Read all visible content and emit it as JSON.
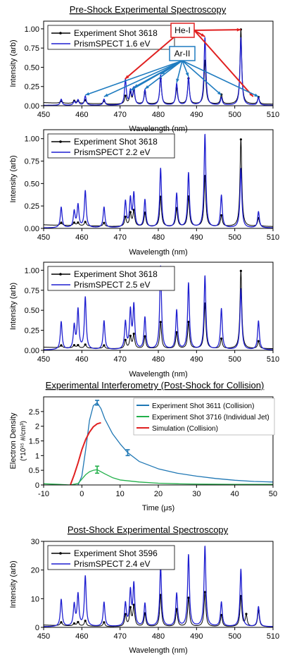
{
  "chart_data": [
    {
      "type": "line",
      "title": "Pre-Shock Experimental Spectroscopy",
      "xlabel": "Wavelength (nm)",
      "ylabel": "Intensity (arb)",
      "xlim": [
        450,
        510
      ],
      "ylim": [
        0,
        1.1
      ],
      "x_ticks": [
        "450",
        "460",
        "470",
        "480",
        "490",
        "500",
        "510"
      ],
      "y_ticks": [
        "0.00",
        "0.25",
        "0.50",
        "0.75",
        "1.00"
      ],
      "legend": [
        "Experiment Shot 3618",
        "PrismSPECT 1.6 eV"
      ],
      "legend_position": "top-left",
      "series": [
        {
          "name": "Experiment Shot 3618",
          "color": "#000000",
          "peaks": [
            [
              454.6,
              0.04
            ],
            [
              458.0,
              0.04
            ],
            [
              459.0,
              0.04
            ],
            [
              460.9,
              0.05
            ],
            [
              465.8,
              0.04
            ],
            [
              471.4,
              0.1
            ],
            [
              472.7,
              0.14
            ],
            [
              473.6,
              0.17
            ],
            [
              476.5,
              0.15
            ],
            [
              480.6,
              0.33
            ],
            [
              484.8,
              0.2
            ],
            [
              487.9,
              0.33
            ],
            [
              492.2,
              0.56
            ],
            [
              496.5,
              0.12
            ],
            [
              501.6,
              0.97
            ],
            [
              506.2,
              0.09
            ]
          ]
        },
        {
          "name": "PrismSPECT 1.6 eV",
          "color": "#1f1fd0",
          "peaks": [
            [
              454.6,
              0.08
            ],
            [
              458.0,
              0.05
            ],
            [
              459.0,
              0.07
            ],
            [
              460.9,
              0.12
            ],
            [
              465.8,
              0.08
            ],
            [
              471.4,
              0.33
            ],
            [
              472.7,
              0.18
            ],
            [
              473.6,
              0.22
            ],
            [
              476.5,
              0.2
            ],
            [
              480.6,
              0.39
            ],
            [
              484.8,
              0.28
            ],
            [
              487.9,
              0.36
            ],
            [
              492.2,
              0.88
            ],
            [
              496.5,
              0.1
            ],
            [
              501.6,
              0.88
            ],
            [
              506.2,
              0.1
            ]
          ]
        }
      ],
      "annotations": [
        {
          "text": "He-I",
          "color": "#e02020",
          "targets": [
            471.3,
            492.2,
            501.6,
            504.8
          ]
        },
        {
          "text": "Ar-II",
          "color": "#1f7cc0",
          "targets": [
            460.9,
            465.8,
            472.7,
            473.6,
            476.5,
            480.6,
            484.8,
            487.9,
            496.5,
            506.2
          ]
        }
      ]
    },
    {
      "type": "line",
      "xlabel": "Wavelength (nm)",
      "ylabel": "Intensity (arb)",
      "xlim": [
        450,
        510
      ],
      "ylim": [
        0,
        1.1
      ],
      "x_ticks": [
        "450",
        "460",
        "470",
        "480",
        "490",
        "500",
        "510"
      ],
      "y_ticks": [
        "0.00",
        "0.25",
        "0.50",
        "0.75",
        "1.00"
      ],
      "legend": [
        "Experiment Shot 3618",
        "PrismSPECT 2.2 eV"
      ],
      "legend_position": "top-left",
      "series": [
        {
          "name": "Experiment Shot 3618",
          "color": "#000000",
          "peaks": [
            [
              454.6,
              0.04
            ],
            [
              458.0,
              0.04
            ],
            [
              459.0,
              0.04
            ],
            [
              460.9,
              0.05
            ],
            [
              465.8,
              0.04
            ],
            [
              471.4,
              0.1
            ],
            [
              472.7,
              0.14
            ],
            [
              473.6,
              0.17
            ],
            [
              476.5,
              0.15
            ],
            [
              480.6,
              0.33
            ],
            [
              484.8,
              0.2
            ],
            [
              487.9,
              0.33
            ],
            [
              492.2,
              0.56
            ],
            [
              496.5,
              0.12
            ],
            [
              501.6,
              0.97
            ],
            [
              506.2,
              0.09
            ]
          ]
        },
        {
          "name": "PrismSPECT 2.2 eV",
          "color": "#1f1fd0",
          "peaks": [
            [
              454.6,
              0.23
            ],
            [
              458.0,
              0.18
            ],
            [
              459.0,
              0.25
            ],
            [
              460.9,
              0.41
            ],
            [
              465.8,
              0.23
            ],
            [
              471.4,
              0.29
            ],
            [
              472.7,
              0.31
            ],
            [
              473.6,
              0.37
            ],
            [
              476.5,
              0.31
            ],
            [
              480.6,
              0.66
            ],
            [
              484.8,
              0.38
            ],
            [
              487.9,
              0.61
            ],
            [
              492.2,
              1.04
            ],
            [
              496.5,
              0.36
            ],
            [
              501.6,
              0.66
            ],
            [
              506.2,
              0.18
            ]
          ]
        }
      ]
    },
    {
      "type": "line",
      "xlabel": "Wavelength (nm)",
      "ylabel": "Intensity (arb)",
      "xlim": [
        450,
        510
      ],
      "ylim": [
        0,
        1.1
      ],
      "x_ticks": [
        "450",
        "460",
        "470",
        "480",
        "490",
        "500",
        "510"
      ],
      "y_ticks": [
        "0.00",
        "0.25",
        "0.50",
        "0.75",
        "1.00"
      ],
      "legend": [
        "Experiment Shot 3618",
        "PrismSPECT 2.5 eV"
      ],
      "legend_position": "top-left",
      "series": [
        {
          "name": "Experiment Shot 3618",
          "color": "#000000",
          "peaks": [
            [
              454.6,
              0.04
            ],
            [
              458.0,
              0.04
            ],
            [
              459.0,
              0.04
            ],
            [
              460.9,
              0.05
            ],
            [
              465.8,
              0.04
            ],
            [
              471.4,
              0.1
            ],
            [
              472.7,
              0.14
            ],
            [
              473.6,
              0.17
            ],
            [
              476.5,
              0.15
            ],
            [
              480.6,
              0.33
            ],
            [
              484.8,
              0.2
            ],
            [
              487.9,
              0.33
            ],
            [
              492.2,
              0.56
            ],
            [
              496.5,
              0.12
            ],
            [
              501.6,
              0.97
            ],
            [
              506.2,
              0.09
            ]
          ]
        },
        {
          "name": "PrismSPECT 2.5 eV",
          "color": "#1f1fd0",
          "peaks": [
            [
              454.6,
              0.35
            ],
            [
              458.0,
              0.29
            ],
            [
              459.0,
              0.49
            ],
            [
              460.9,
              0.65
            ],
            [
              465.8,
              0.36
            ],
            [
              471.4,
              0.34
            ],
            [
              472.7,
              0.47
            ],
            [
              473.6,
              0.54
            ],
            [
              476.5,
              0.4
            ],
            [
              480.6,
              1.04
            ],
            [
              484.8,
              0.49
            ],
            [
              487.9,
              0.83
            ],
            [
              492.2,
              0.92
            ],
            [
              496.5,
              0.51
            ],
            [
              501.6,
              0.76
            ],
            [
              506.2,
              0.36
            ]
          ]
        }
      ]
    },
    {
      "type": "line",
      "title": "Experimental Interferometry (Post-Shock for Collision)",
      "xlabel": "Time (μs)",
      "ylabel": "Electron Density",
      "ylabel2": "(*10¹⁵ #/cm³)",
      "xlim": [
        -10,
        50
      ],
      "ylim": [
        0,
        3
      ],
      "x_ticks": [
        "-10",
        "0",
        "10",
        "20",
        "30",
        "40",
        "50"
      ],
      "y_ticks": [
        "0",
        "0.5",
        "1",
        "1.5",
        "2",
        "2.5"
      ],
      "legend": [
        "Experiment Shot 3611 (Collision)",
        "Experiment Shot 3716 (Individual Jet)",
        "Simulation (Collision)"
      ],
      "legend_position": "top-right",
      "series": [
        {
          "name": "Experiment Shot 3611 (Collision)",
          "color": "#1f77b4",
          "points": [
            [
              -1,
              0.0
            ],
            [
              0,
              0.3
            ],
            [
              1,
              1.2
            ],
            [
              2,
              2.2
            ],
            [
              3,
              2.7
            ],
            [
              4,
              2.8
            ],
            [
              5,
              2.6
            ],
            [
              6,
              2.25
            ],
            [
              8,
              1.75
            ],
            [
              10,
              1.4
            ],
            [
              12,
              1.1
            ],
            [
              15,
              0.8
            ],
            [
              20,
              0.55
            ],
            [
              25,
              0.4
            ],
            [
              30,
              0.3
            ],
            [
              35,
              0.22
            ],
            [
              40,
              0.16
            ],
            [
              45,
              0.12
            ],
            [
              50,
              0.1
            ]
          ],
          "error_bars": [
            [
              4,
              2.8,
              0.08
            ],
            [
              12,
              1.1,
              0.1
            ]
          ]
        },
        {
          "name": "Experiment Shot 3716 (Individual Jet)",
          "color": "#22b04a",
          "points": [
            [
              -10,
              0.04
            ],
            [
              -6,
              0.02
            ],
            [
              -3,
              0.0
            ],
            [
              -1,
              0.05
            ],
            [
              0,
              0.2
            ],
            [
              1,
              0.35
            ],
            [
              2,
              0.45
            ],
            [
              3,
              0.5
            ],
            [
              4,
              0.52
            ],
            [
              6,
              0.38
            ],
            [
              8,
              0.25
            ],
            [
              10,
              0.17
            ],
            [
              15,
              0.1
            ],
            [
              20,
              0.06
            ],
            [
              25,
              0.04
            ],
            [
              30,
              0.03
            ],
            [
              40,
              0.02
            ],
            [
              50,
              0.02
            ]
          ],
          "error_bars": [
            [
              4,
              0.52,
              0.12
            ]
          ]
        },
        {
          "name": "Simulation (Collision)",
          "color": "#e02020",
          "points": [
            [
              -3,
              0.0
            ],
            [
              -2,
              0.35
            ],
            [
              -1,
              0.75
            ],
            [
              0,
              1.2
            ],
            [
              1,
              1.55
            ],
            [
              2,
              1.8
            ],
            [
              3,
              1.98
            ],
            [
              4,
              2.08
            ],
            [
              5,
              2.12
            ]
          ]
        }
      ]
    },
    {
      "type": "line",
      "title": "Post-Shock Experimental Spectroscopy",
      "xlabel": "Wavelength (nm)",
      "ylabel": "Intensity (arb)",
      "xlim": [
        450,
        510
      ],
      "ylim": [
        0,
        30
      ],
      "x_ticks": [
        "450",
        "460",
        "470",
        "480",
        "490",
        "500",
        "510"
      ],
      "y_ticks": [
        "0",
        "10",
        "20",
        "30"
      ],
      "legend": [
        "Experiment Shot 3596",
        "PrismSPECT 2.4 eV"
      ],
      "legend_position": "top-left",
      "series": [
        {
          "name": "Experiment Shot 3596",
          "color": "#000000",
          "peaks": [
            [
              454.6,
              1.5
            ],
            [
              458.0,
              1.0
            ],
            [
              459.0,
              1.5
            ],
            [
              460.9,
              2.0
            ],
            [
              465.8,
              1.5
            ],
            [
              471.4,
              4.0
            ],
            [
              472.7,
              6.0
            ],
            [
              473.6,
              7.0
            ],
            [
              476.5,
              4.5
            ],
            [
              480.6,
              11.0
            ],
            [
              484.8,
              6.0
            ],
            [
              487.9,
              10.0
            ],
            [
              492.2,
              12.0
            ],
            [
              496.5,
              4.0
            ],
            [
              501.6,
              10.5
            ],
            [
              503.0,
              4.0
            ],
            [
              506.2,
              5.5
            ]
          ]
        },
        {
          "name": "PrismSPECT 2.4 eV",
          "color": "#1f1fd0",
          "peaks": [
            [
              454.6,
              9.5
            ],
            [
              458.0,
              7.5
            ],
            [
              459.0,
              11.0
            ],
            [
              460.9,
              17.5
            ],
            [
              465.8,
              8.5
            ],
            [
              471.4,
              8.0
            ],
            [
              472.7,
              12.0
            ],
            [
              473.6,
              14.5
            ],
            [
              476.5,
              8.0
            ],
            [
              480.6,
              21.0
            ],
            [
              484.8,
              11.5
            ],
            [
              487.9,
              25.0
            ],
            [
              492.2,
              28.0
            ],
            [
              496.5,
              8.5
            ],
            [
              501.6,
              20.0
            ],
            [
              506.2,
              7.0
            ]
          ]
        }
      ]
    }
  ]
}
